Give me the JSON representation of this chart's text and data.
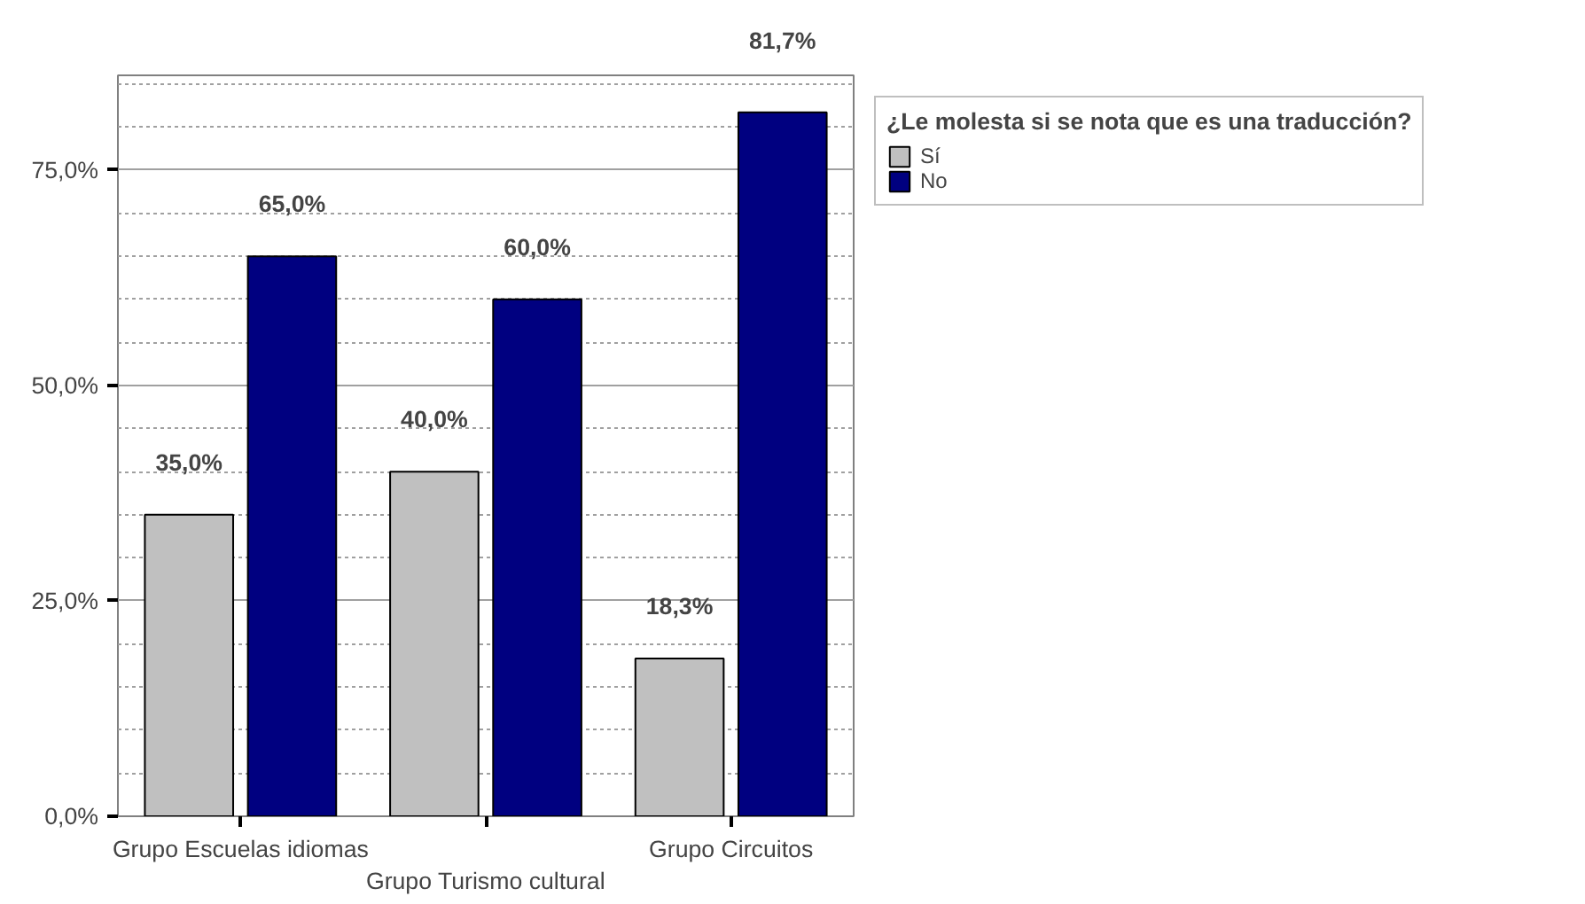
{
  "chart_data": {
    "type": "bar",
    "categories": [
      "Grupo Escuelas idiomas",
      "Grupo Turismo cultural",
      "Grupo Circuitos"
    ],
    "legend_title": "¿Le molesta si se nota que es una traducción?",
    "series": [
      {
        "name": "Sí",
        "color": "#c0c0c0",
        "values": [
          35.0,
          40.0,
          18.3
        ]
      },
      {
        "name": "No",
        "color": "#000080",
        "values": [
          65.0,
          60.0,
          81.7
        ]
      }
    ],
    "ylim": [
      0,
      86
    ],
    "yticks": [
      {
        "value": 0,
        "label": "0,0%"
      },
      {
        "value": 25,
        "label": "25,0%"
      },
      {
        "value": 50,
        "label": "50,0%"
      },
      {
        "value": 75,
        "label": "75,0%"
      }
    ],
    "value_labels": [
      [
        "35,0%",
        "40,0%",
        "18,3%"
      ],
      [
        "65,0%",
        "60,0%",
        "81,7%"
      ]
    ],
    "grid": "y",
    "legend": "top right"
  }
}
